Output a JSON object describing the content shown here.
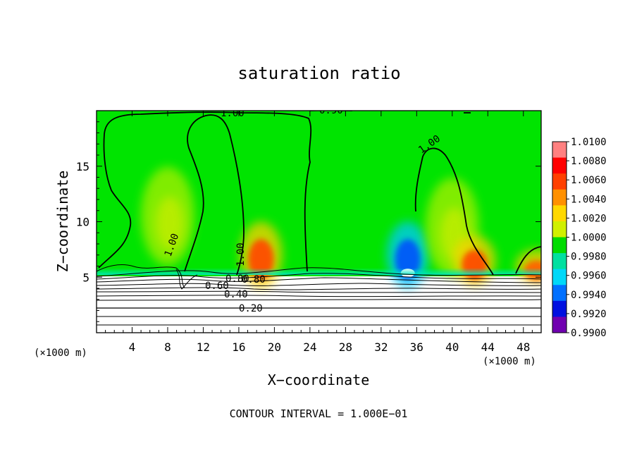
{
  "chart_data": {
    "type": "heatmap",
    "title": "saturation ratio",
    "xlabel": "X−coordinate",
    "ylabel": "Z−coordinate",
    "x_unit": "(×1000 m)",
    "x_unit_right": "(×1000 m)",
    "x_ticks": [
      4,
      8,
      12,
      16,
      20,
      24,
      28,
      32,
      36,
      40,
      44,
      48
    ],
    "y_ticks": [
      5,
      10,
      15
    ],
    "xlim": [
      0,
      50
    ],
    "ylim": [
      0,
      20
    ],
    "footer": "CONTOUR INTERVAL = 1.000E−01",
    "contour_interval": 0.1,
    "contour_labels": [
      "1.00",
      "1.00",
      "1.00",
      "1.00",
      "0.80",
      "0.60",
      "0.80",
      "0.40",
      "0.20",
      "0.90"
    ],
    "colorbar": {
      "labels": [
        "1.0100",
        "1.0080",
        "1.0060",
        "1.0040",
        "1.0020",
        "1.0000",
        "0.9980",
        "0.9960",
        "0.9940",
        "0.9920",
        "0.9900"
      ],
      "colors": [
        "#ff0000",
        "#ff3c00",
        "#ff8000",
        "#ffd000",
        "#d8f000",
        "#00e400",
        "#00d060",
        "#00e8b8",
        "#00a0ff",
        "#0030ff",
        "#5000a0"
      ],
      "cell_colors": [
        "#ff8080",
        "#ff0000",
        "#ff4000",
        "#ff9000",
        "#ffd800",
        "#d0f000",
        "#00dc00",
        "#00e0a0",
        "#00d8f8",
        "#0070ff",
        "#0010e0",
        "#7000b0"
      ]
    },
    "plumes": [
      {
        "x": 8,
        "z_top": 14,
        "value": 1.0016,
        "kind": "updraft"
      },
      {
        "x": 18.5,
        "z_bottom": 5,
        "z_top": 9,
        "value": 1.0065,
        "kind": "supersaturated"
      },
      {
        "x": 35,
        "z_bottom": 5,
        "z_top": 9,
        "value": 0.9935,
        "kind": "subsaturated"
      },
      {
        "x": 40,
        "z_top": 13,
        "value": 1.0016,
        "kind": "updraft"
      },
      {
        "x": 42.5,
        "z_bottom": 5,
        "z_top": 8,
        "value": 1.0065,
        "kind": "supersaturated"
      },
      {
        "x": 49.5,
        "z_bottom": 5,
        "z_top": 7,
        "value": 1.006,
        "kind": "supersaturated"
      }
    ]
  }
}
